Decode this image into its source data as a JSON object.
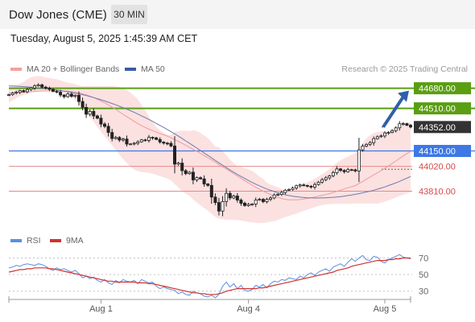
{
  "header": {
    "title": "Dow Jones (CME)",
    "timeframe": "30 MIN"
  },
  "datetime": "Tuesday, August 5, 2025 1:45:39 AM CET",
  "legend": {
    "bollinger": "MA 20 + Bollinger Bands",
    "ma50": "MA 50",
    "rsi": "RSI",
    "rsi_ma": "9MA"
  },
  "credit": "Research © 2025 Trading Central",
  "colors": {
    "resistance": "#5a9e12",
    "support": "#e58a8a",
    "pivot": "#3d78e6",
    "last": "#333333",
    "up": "#ffffff",
    "down": "#222222",
    "band": "#fbdcdc",
    "ma20": "#f09a9a",
    "ma50": "#6b7bb0",
    "rsi": "#5b8ee0",
    "rsi_ma": "#d23030",
    "arrow": "#2f5fa8"
  },
  "chart_data": [
    {
      "type": "candlestick",
      "ylim": [
        43500,
        44800
      ],
      "x_ticks": [
        "Aug 1",
        "Aug 4",
        "Aug 5"
      ],
      "levels": [
        {
          "label": "44680.00",
          "value": 44680,
          "kind": "resistance"
        },
        {
          "label": "44510.00",
          "value": 44510,
          "kind": "resistance"
        },
        {
          "label": "44352.00",
          "value": 44352,
          "kind": "last"
        },
        {
          "label": "44150.00",
          "value": 44150,
          "kind": "pivot"
        },
        {
          "label": "44020.00",
          "value": 44020,
          "kind": "support"
        },
        {
          "label": "43810.00",
          "value": 43810,
          "kind": "support"
        }
      ],
      "close": [
        44626,
        44639,
        44646,
        44660,
        44650,
        44669,
        44682,
        44700,
        44709,
        44690,
        44681,
        44671,
        44654,
        44647,
        44623,
        44609,
        44631,
        44612,
        44621,
        44568,
        44518,
        44460,
        44484,
        44446,
        44427,
        44377,
        44358,
        44306,
        44255,
        44264,
        44242,
        44251,
        44208,
        44209,
        44215,
        44227,
        44243,
        44239,
        44265,
        44260,
        44247,
        44225,
        44216,
        44214,
        44192,
        44038,
        44047,
        43983,
        43958,
        43970,
        43905,
        43924,
        43914,
        43871,
        43859,
        43760,
        43714,
        43642,
        43722,
        43791,
        43753,
        43769,
        43735,
        43708,
        43688,
        43698,
        43701,
        43735,
        43741,
        43721,
        43741,
        43753,
        43778,
        43783,
        43799,
        43818,
        43824,
        43836,
        43855,
        43863,
        43858,
        43851,
        43844,
        43866,
        43886,
        43907,
        43923,
        43940,
        43966,
        43998,
        43985,
        43974,
        43992,
        43990,
        43981,
        44159,
        44191,
        44205,
        44220,
        44254,
        44270,
        44277,
        44302,
        44306,
        44321,
        44345,
        44380,
        44381,
        44367,
        44352
      ],
      "ma20": [
        44640,
        44641,
        44643,
        44645,
        44646,
        44648,
        44650,
        44653,
        44655,
        44657,
        44657,
        44658,
        44659,
        44659,
        44658,
        44657,
        44655,
        44652,
        44647,
        44641,
        44633,
        44624,
        44613,
        44601,
        44587,
        44572,
        44557,
        44539,
        44520,
        44501,
        44480,
        44460,
        44440,
        44420,
        44400,
        44381,
        44364,
        44349,
        44334,
        44322,
        44309,
        44297,
        44286,
        44275,
        44262,
        44246,
        44230,
        44214,
        44198,
        44181,
        44163,
        44146,
        44128,
        44110,
        44092,
        44074,
        44055,
        44035,
        44015,
        43997,
        43978,
        43958,
        43938,
        43918,
        43899,
        43880,
        43861,
        43843,
        43826,
        43810,
        43796,
        43781,
        43769,
        43757,
        43748,
        43741,
        43737,
        43736,
        43737,
        43739,
        43743,
        43749,
        43754,
        43760,
        43768,
        43774,
        43781,
        43789,
        43798,
        43808,
        43818,
        43829,
        43838,
        43848,
        43857,
        43874,
        43892,
        43911,
        43929,
        43948,
        43966,
        43984,
        44003,
        44023,
        44044,
        44065,
        44086,
        44108,
        44128,
        44146
      ],
      "bb_upper": [
        44690,
        44699,
        44709,
        44719,
        44733,
        44756,
        44773,
        44780,
        44784,
        44781,
        44771,
        44766,
        44762,
        44756,
        44746,
        44737,
        44728,
        44722,
        44715,
        44704,
        44697,
        44700,
        44700,
        44700,
        44700,
        44700,
        44700,
        44700,
        44700,
        44696,
        44690,
        44680,
        44665,
        44642,
        44617,
        44586,
        44537,
        44493,
        44439,
        44392,
        44353,
        44327,
        44304,
        44288,
        44284,
        44312,
        44315,
        44321,
        44322,
        44317,
        44325,
        44319,
        44302,
        44280,
        44259,
        44224,
        44187,
        44181,
        44150,
        44114,
        44077,
        44048,
        44026,
        44014,
        44003,
        43993,
        43981,
        43960,
        43934,
        43915,
        43882,
        43867,
        43854,
        43842,
        43829,
        43811,
        43809,
        43817,
        43833,
        43849,
        43869,
        43885,
        43898,
        43914,
        43934,
        43954,
        43976,
        43997,
        44022,
        44049,
        44072,
        44088,
        44103,
        44118,
        44130,
        44177,
        44218,
        44257,
        44282,
        44301,
        44310,
        44316,
        44319,
        44320,
        44328,
        44339,
        44354,
        44376,
        44388,
        44391
      ],
      "bb_lower": [
        44559,
        44578,
        44595,
        44613,
        44621,
        44634,
        44644,
        44649,
        44655,
        44657,
        44657,
        44658,
        44659,
        44658,
        44648,
        44637,
        44621,
        44603,
        44581,
        44553,
        44520,
        44479,
        44438,
        44397,
        44355,
        44313,
        44274,
        44235,
        44196,
        44158,
        44119,
        44082,
        44047,
        44016,
        43993,
        43978,
        43972,
        43969,
        43965,
        43958,
        43948,
        43936,
        43928,
        43916,
        43901,
        43869,
        43842,
        43809,
        43787,
        43770,
        43740,
        43714,
        43690,
        43667,
        43645,
        43619,
        43592,
        43577,
        43572,
        43568,
        43568,
        43567,
        43565,
        43561,
        43555,
        43550,
        43545,
        43542,
        43541,
        43541,
        43546,
        43551,
        43556,
        43567,
        43579,
        43591,
        43600,
        43610,
        43620,
        43632,
        43643,
        43654,
        43665,
        43675,
        43684,
        43692,
        43698,
        43701,
        43703,
        43704,
        43704,
        43704,
        43704,
        43705,
        43705,
        43705,
        43705,
        43705,
        43705,
        43705,
        43705,
        43713,
        43723,
        43733,
        43744,
        43756,
        43768,
        43780,
        43790,
        43800
      ],
      "ma50": [
        44700,
        44699,
        44697,
        44696,
        44694,
        44692,
        44690,
        44687,
        44684,
        44681,
        44678,
        44674,
        44670,
        44666,
        44661,
        44656,
        44651,
        44645,
        44639,
        44633,
        44626,
        44618,
        44610,
        44601,
        44592,
        44583,
        44573,
        44562,
        44551,
        44540,
        44528,
        44516,
        44503,
        44490,
        44476,
        44462,
        44447,
        44432,
        44416,
        44400,
        44383,
        44366,
        44349,
        44331,
        44313,
        44294,
        44275,
        44255,
        44235,
        44215,
        44195,
        44174,
        44153,
        44132,
        44112,
        44091,
        44070,
        44049,
        44029,
        44009,
        43989,
        43970,
        43952,
        43934,
        43917,
        43900,
        43884,
        43869,
        43855,
        43841,
        43828,
        43817,
        43806,
        43796,
        43787,
        43779,
        43773,
        43767,
        43763,
        43759,
        43756,
        43754,
        43753,
        43752,
        43752,
        43753,
        43754,
        43756,
        43758,
        43761,
        43764,
        43768,
        43773,
        43778,
        43783,
        43789,
        43796,
        43803,
        43810,
        43818,
        43827,
        43836,
        43846,
        43857,
        43868,
        43880,
        43893,
        43906,
        43920,
        43934
      ]
    },
    {
      "type": "line",
      "ylim": [
        20,
        85
      ],
      "y_ticks": [
        70,
        50,
        30
      ],
      "rsi": [
        58,
        59,
        61,
        60,
        62,
        63,
        62,
        61,
        63,
        62,
        60,
        57,
        55,
        58,
        56,
        57,
        55,
        53,
        55,
        51,
        46,
        48,
        45,
        47,
        43,
        41,
        44,
        40,
        38,
        43,
        40,
        44,
        42,
        41,
        43,
        39,
        44,
        42,
        40,
        41,
        36,
        33,
        35,
        33,
        32,
        31,
        27,
        29,
        26,
        25,
        30,
        28,
        27,
        24,
        23,
        25,
        22,
        26,
        36,
        41,
        35,
        39,
        33,
        37,
        31,
        30,
        32,
        37,
        35,
        38,
        34,
        39,
        42,
        41,
        44,
        43,
        46,
        45,
        44,
        48,
        46,
        50,
        52,
        49,
        53,
        55,
        57,
        54,
        59,
        61,
        63,
        60,
        65,
        69,
        66,
        70,
        73,
        68,
        67,
        72,
        71,
        66,
        64,
        68,
        70,
        72,
        74,
        71,
        70,
        69
      ],
      "rsi_ma": [
        53,
        54,
        55,
        56,
        56,
        57,
        57,
        58,
        58,
        58,
        58,
        57,
        57,
        56,
        55,
        54,
        53,
        52,
        51,
        50,
        49,
        48,
        47,
        46,
        45,
        44,
        43,
        42,
        42,
        41,
        41,
        41,
        41,
        41,
        41,
        40,
        40,
        40,
        39,
        39,
        38,
        37,
        36,
        35,
        34,
        33,
        32,
        31,
        30,
        29,
        28,
        28,
        27,
        27,
        26,
        26,
        26,
        27,
        28,
        30,
        31,
        32,
        33,
        33,
        33,
        33,
        33,
        33,
        34,
        34,
        35,
        36,
        37,
        38,
        39,
        40,
        41,
        42,
        43,
        44,
        45,
        46,
        47,
        48,
        49,
        50,
        51,
        52,
        53,
        55,
        56,
        57,
        58,
        60,
        61,
        62,
        63,
        64,
        65,
        66,
        67,
        67,
        67,
        68,
        68,
        69,
        69,
        70,
        70,
        70
      ]
    }
  ]
}
